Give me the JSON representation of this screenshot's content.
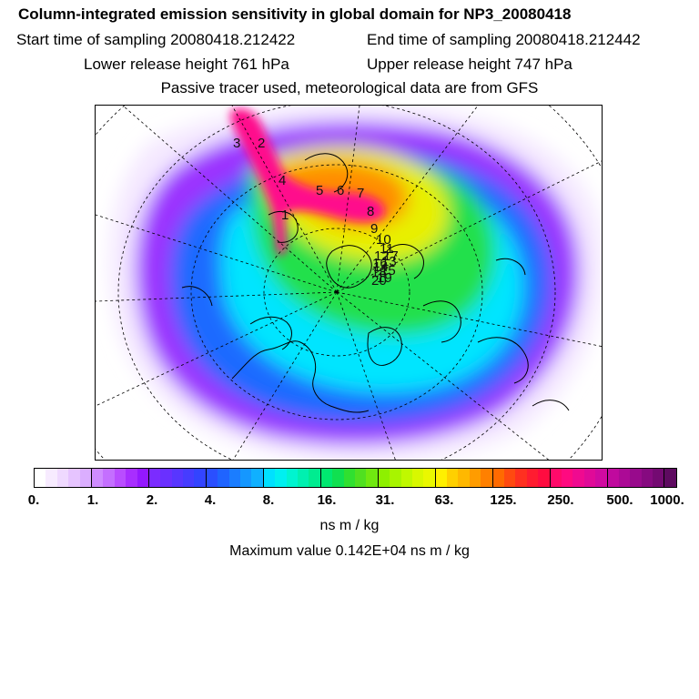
{
  "title": "Column-integrated emission sensitivity in global domain for NP3_20080418",
  "sampling": {
    "start": "Start time of sampling 20080418.212422",
    "end": "End time of sampling 20080418.212442"
  },
  "release": {
    "lower": "Lower release height  761 hPa",
    "upper": "Upper release height  747 hPa"
  },
  "note": "Passive tracer used, meteorological data are from GFS",
  "map": {
    "track_markers": [
      "1",
      "2",
      "3",
      "4",
      "5",
      "6",
      "7",
      "8",
      "9",
      "10",
      "11",
      "12",
      "13",
      "14",
      "15",
      "16",
      "17",
      "18",
      "19",
      "20"
    ],
    "colors": {
      "low": "#f4e8ff",
      "violet": "#9b30ff",
      "blue": "#1e6bff",
      "cyan": "#00e5ff",
      "green": "#23e04b",
      "yellow": "#e8f000",
      "orange": "#ff8c00",
      "red": "#ff2e2e",
      "magenta": "#ff0a8c",
      "coast": "#000000",
      "grid": "#000000"
    }
  },
  "colorbar": {
    "tick_labels": [
      "0.",
      "1.",
      "2.",
      "4.",
      "8.",
      "16.",
      "31.",
      "63.",
      "125.",
      "250.",
      "500.",
      "1000."
    ],
    "colors": [
      "#ffffff",
      "#f7ebff",
      "#efd9ff",
      "#e6c4ff",
      "#dbaeff",
      "#cf8cff",
      "#c46fff",
      "#b94dff",
      "#a82eff",
      "#9418ff",
      "#7b2cff",
      "#6a30ff",
      "#5836ff",
      "#463cff",
      "#3344ff",
      "#2a4fff",
      "#1f64ff",
      "#1b7dff",
      "#1597ff",
      "#10b0ff",
      "#00e0ff",
      "#00f0f0",
      "#00f4d0",
      "#00f0b0",
      "#00ec90",
      "#00e870",
      "#10e050",
      "#30e030",
      "#50e020",
      "#70e810",
      "#8ef000",
      "#a8f400",
      "#c0f800",
      "#d8f800",
      "#eaf800",
      "#fff000",
      "#ffd000",
      "#ffb800",
      "#ff9c00",
      "#ff8000",
      "#ff6a00",
      "#ff4a10",
      "#ff3020",
      "#ff1c30",
      "#ff0c40",
      "#ff0a6a",
      "#ff0a80",
      "#f00a90",
      "#e00a98",
      "#d00aa0",
      "#c00a9e",
      "#ac0a96",
      "#980a8c",
      "#860a80",
      "#740a72",
      "#5e0a60"
    ],
    "units": "ns m / kg",
    "maximum": "Maximum value  0.142E+04 ns m / kg"
  }
}
